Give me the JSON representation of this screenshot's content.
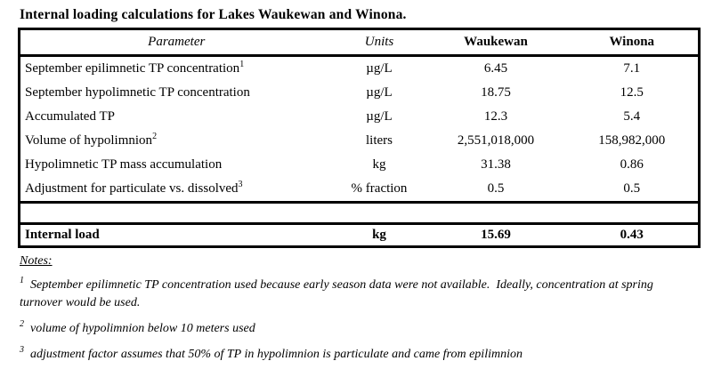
{
  "title": "Internal loading calculations for Lakes Waukewan and Winona.",
  "colors": {
    "text": "#000000",
    "background": "#ffffff",
    "border": "#000000"
  },
  "table": {
    "headers": {
      "parameter": "Parameter",
      "units": "Units",
      "waukewan": "Waukewan",
      "winona": "Winona"
    },
    "rows": [
      {
        "parameter": "September epilimnetic TP concentration",
        "sup": "1",
        "units": "µg/L",
        "waukewan": "6.45",
        "winona": "7.1"
      },
      {
        "parameter": "September hypolimnetic TP concentration",
        "sup": "",
        "units": "µg/L",
        "waukewan": "18.75",
        "winona": "12.5"
      },
      {
        "parameter": "Accumulated TP",
        "sup": "",
        "units": "µg/L",
        "waukewan": "12.3",
        "winona": "5.4"
      },
      {
        "parameter": "Volume of hypolimnion",
        "sup": "2",
        "units": "liters",
        "waukewan": "2,551,018,000",
        "winona": "158,982,000"
      },
      {
        "parameter": "Hypolimnetic TP mass accumulation",
        "sup": "",
        "units": "kg",
        "waukewan": "31.38",
        "winona": "0.86"
      },
      {
        "parameter": "Adjustment for particulate vs. dissolved",
        "sup": "3",
        "units": "% fraction",
        "waukewan": "0.5",
        "winona": "0.5"
      }
    ],
    "total_row": {
      "parameter": "Internal load",
      "units": "kg",
      "waukewan": "15.69",
      "winona": "0.43"
    }
  },
  "notes": {
    "heading": "Notes:",
    "items": [
      {
        "sup": "1",
        "text": "September epilimnetic TP concentration used because early season data were not available.  Ideally, concentration at spring turnover would be used."
      },
      {
        "sup": "2",
        "text": "volume of hypolimnion below 10 meters used"
      },
      {
        "sup": "3",
        "text": "adjustment factor assumes that 50% of TP in hypolimnion is particulate and came from epilimnion"
      }
    ]
  }
}
